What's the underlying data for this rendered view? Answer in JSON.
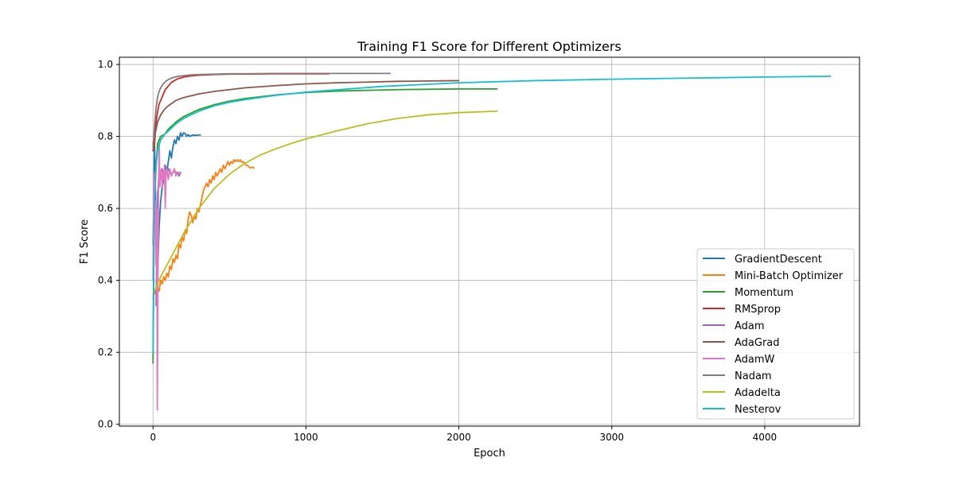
{
  "chart_data": {
    "type": "line",
    "title": "Training F1 Score for Different Optimizers",
    "xlabel": "Epoch",
    "ylabel": "F1 Score",
    "xlim": [
      -220,
      4620
    ],
    "ylim": [
      -0.005,
      1.02
    ],
    "xticks": [
      0,
      1000,
      2000,
      3000,
      4000
    ],
    "yticks": [
      0.0,
      0.2,
      0.4,
      0.6,
      0.8,
      1.0
    ],
    "grid": true,
    "legend_position": "lower-right",
    "series": [
      {
        "name": "GradientDescent",
        "color": "#1f77b4",
        "x": [
          0,
          5,
          10,
          15,
          20,
          30,
          40,
          50,
          60,
          70,
          80,
          90,
          100,
          110,
          120,
          130,
          140,
          150,
          160,
          170,
          180,
          190,
          200,
          210,
          220,
          230,
          240,
          250,
          260,
          280,
          300,
          310
        ],
        "y": [
          0.5,
          0.62,
          0.78,
          0.66,
          0.56,
          0.42,
          0.55,
          0.62,
          0.66,
          0.68,
          0.72,
          0.7,
          0.73,
          0.76,
          0.74,
          0.77,
          0.79,
          0.78,
          0.8,
          0.79,
          0.81,
          0.8,
          0.81,
          0.808,
          0.8,
          0.805,
          0.8,
          0.802,
          0.804,
          0.803,
          0.804,
          0.804
        ]
      },
      {
        "name": "Mini-Batch Optimizer",
        "color": "#ff7f0e",
        "x": [
          0,
          10,
          20,
          30,
          40,
          50,
          60,
          70,
          80,
          90,
          100,
          110,
          120,
          130,
          140,
          150,
          160,
          170,
          180,
          190,
          200,
          210,
          220,
          230,
          240,
          250,
          260,
          270,
          280,
          290,
          300,
          310,
          320,
          330,
          340,
          350,
          360,
          370,
          380,
          390,
          400,
          410,
          420,
          430,
          440,
          450,
          460,
          470,
          480,
          490,
          500,
          510,
          520,
          530,
          540,
          550,
          560,
          570,
          580,
          590,
          600,
          610,
          620,
          630,
          640,
          650,
          660
        ],
        "y": [
          0.35,
          0.37,
          0.36,
          0.38,
          0.37,
          0.4,
          0.39,
          0.41,
          0.4,
          0.42,
          0.41,
          0.44,
          0.43,
          0.46,
          0.45,
          0.47,
          0.46,
          0.5,
          0.49,
          0.52,
          0.51,
          0.54,
          0.53,
          0.57,
          0.59,
          0.58,
          0.56,
          0.58,
          0.57,
          0.6,
          0.59,
          0.61,
          0.63,
          0.65,
          0.66,
          0.67,
          0.66,
          0.68,
          0.67,
          0.69,
          0.68,
          0.7,
          0.69,
          0.7,
          0.71,
          0.7,
          0.72,
          0.71,
          0.72,
          0.73,
          0.72,
          0.73,
          0.725,
          0.735,
          0.73,
          0.735,
          0.73,
          0.735,
          0.728,
          0.73,
          0.725,
          0.72,
          0.718,
          0.715,
          0.712,
          0.715,
          0.712
        ]
      },
      {
        "name": "Momentum",
        "color": "#2ca02c",
        "x": [
          0,
          5,
          10,
          20,
          30,
          50,
          75,
          100,
          150,
          200,
          300,
          400,
          500,
          600,
          800,
          1000,
          1200,
          1400,
          1600,
          1800,
          2000,
          2250
        ],
        "y": [
          0.17,
          0.45,
          0.62,
          0.72,
          0.78,
          0.8,
          0.805,
          0.82,
          0.84,
          0.855,
          0.875,
          0.888,
          0.898,
          0.905,
          0.915,
          0.922,
          0.926,
          0.928,
          0.93,
          0.931,
          0.932,
          0.932
        ]
      },
      {
        "name": "RMSprop",
        "color": "#d62728",
        "x": [
          0,
          10,
          20,
          30,
          40,
          50,
          60,
          70,
          80,
          90,
          100,
          120,
          140,
          160,
          180,
          200,
          250,
          300,
          400,
          500,
          600,
          800,
          1000,
          1150
        ],
        "y": [
          0.76,
          0.78,
          0.84,
          0.87,
          0.89,
          0.9,
          0.91,
          0.92,
          0.93,
          0.935,
          0.94,
          0.95,
          0.955,
          0.96,
          0.962,
          0.965,
          0.968,
          0.97,
          0.972,
          0.973,
          0.973,
          0.974,
          0.974,
          0.974
        ]
      },
      {
        "name": "Adam",
        "color": "#9467bd",
        "x": [
          20,
          30,
          40,
          50,
          60,
          70,
          80,
          90,
          100,
          110,
          120,
          130,
          140,
          150,
          160,
          170,
          180
        ],
        "y": [
          0.33,
          0.64,
          0.7,
          0.68,
          0.71,
          0.69,
          0.7,
          0.695,
          0.71,
          0.7,
          0.695,
          0.7,
          0.705,
          0.7,
          0.7,
          0.69,
          0.7
        ]
      },
      {
        "name": "AdaGrad",
        "color": "#8c564b",
        "x": [
          0,
          5,
          10,
          20,
          30,
          50,
          75,
          100,
          150,
          200,
          300,
          400,
          500,
          600,
          800,
          1000,
          1200,
          1400,
          1600,
          1800,
          2000
        ],
        "y": [
          0.78,
          0.79,
          0.8,
          0.82,
          0.84,
          0.86,
          0.875,
          0.885,
          0.9,
          0.908,
          0.918,
          0.925,
          0.93,
          0.935,
          0.941,
          0.946,
          0.949,
          0.951,
          0.953,
          0.954,
          0.955
        ]
      },
      {
        "name": "AdamW",
        "color": "#e377c2",
        "x": [
          0,
          5,
          10,
          15,
          20,
          25,
          28,
          32,
          36,
          40,
          45,
          50,
          55,
          60,
          65,
          70,
          75,
          80,
          85,
          90,
          100,
          110,
          120,
          130,
          140,
          150,
          160,
          170
        ],
        "y": [
          0.4,
          0.7,
          0.55,
          0.62,
          0.44,
          0.6,
          0.04,
          0.38,
          0.66,
          0.78,
          0.66,
          0.7,
          0.71,
          0.66,
          0.7,
          0.68,
          0.72,
          0.6,
          0.69,
          0.71,
          0.68,
          0.71,
          0.69,
          0.7,
          0.71,
          0.69,
          0.7,
          0.7
        ]
      },
      {
        "name": "Nadam",
        "color": "#7f7f7f",
        "x": [
          0,
          10,
          20,
          30,
          40,
          50,
          60,
          80,
          100,
          120,
          150,
          200,
          250,
          300,
          400,
          500,
          600,
          800,
          1000,
          1200,
          1400,
          1550
        ],
        "y": [
          0.77,
          0.83,
          0.88,
          0.91,
          0.925,
          0.935,
          0.942,
          0.952,
          0.958,
          0.962,
          0.966,
          0.969,
          0.971,
          0.972,
          0.973,
          0.974,
          0.974,
          0.975,
          0.975,
          0.975,
          0.975,
          0.975
        ]
      },
      {
        "name": "Adadelta",
        "color": "#bcbd22",
        "x": [
          0,
          20,
          50,
          100,
          150,
          200,
          250,
          300,
          400,
          500,
          600,
          700,
          800,
          900,
          1000,
          1200,
          1400,
          1600,
          1800,
          2000,
          2250
        ],
        "y": [
          0.36,
          0.38,
          0.41,
          0.45,
          0.49,
          0.53,
          0.565,
          0.6,
          0.655,
          0.695,
          0.725,
          0.748,
          0.765,
          0.78,
          0.793,
          0.815,
          0.835,
          0.85,
          0.86,
          0.866,
          0.87
        ]
      },
      {
        "name": "Nesterov",
        "color": "#17becf",
        "x": [
          0,
          5,
          10,
          20,
          30,
          50,
          75,
          100,
          150,
          200,
          300,
          400,
          500,
          600,
          800,
          1000,
          1500,
          2000,
          2500,
          3000,
          3500,
          4000,
          4430
        ],
        "y": [
          0.2,
          0.45,
          0.62,
          0.72,
          0.76,
          0.79,
          0.805,
          0.815,
          0.835,
          0.85,
          0.87,
          0.885,
          0.895,
          0.902,
          0.914,
          0.923,
          0.939,
          0.949,
          0.955,
          0.959,
          0.962,
          0.965,
          0.967
        ]
      }
    ]
  }
}
